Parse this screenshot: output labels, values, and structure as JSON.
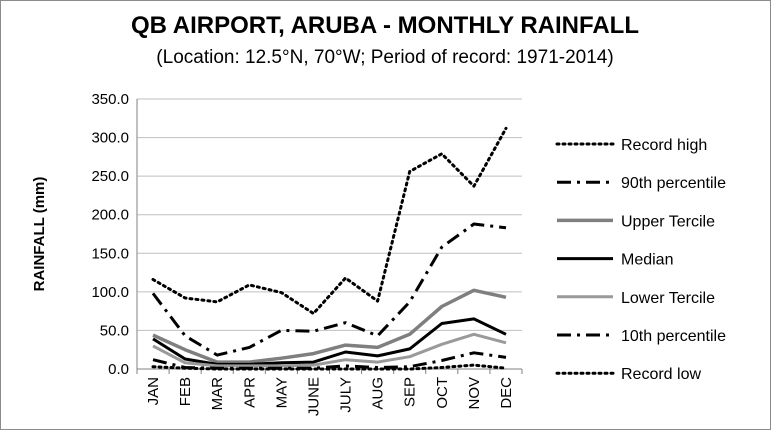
{
  "chart_data": {
    "type": "line",
    "title": "QB AIRPORT, ARUBA - MONTHLY RAINFALL",
    "subtitle": "(Location: 12.5°N, 70°W; Period of record: 1971-2014)",
    "ylabel": "RAINFALL (mm)",
    "xlabel": "",
    "ylim": [
      0,
      350
    ],
    "ytick_step": 50,
    "categories": [
      "JAN",
      "FEB",
      "MAR",
      "APR",
      "MAY",
      "JUNE",
      "JULY",
      "AUG",
      "SEP",
      "OCT",
      "NOV",
      "DEC"
    ],
    "grid": true,
    "legend_position": "right",
    "series": [
      {
        "name": "Record high",
        "style": "dotted",
        "color": "#000000",
        "values": [
          116,
          92,
          87,
          109,
          99,
          72,
          118,
          88,
          256,
          279,
          237,
          312
        ]
      },
      {
        "name": "90th percentile",
        "style": "dashdot",
        "color": "#000000",
        "values": [
          98,
          43,
          18,
          28,
          50,
          49,
          60,
          43,
          87,
          158,
          188,
          183
        ]
      },
      {
        "name": "Upper Tercile",
        "style": "solid-thick",
        "color": "#7f7f7f",
        "values": [
          44,
          25,
          9,
          9,
          14,
          20,
          31,
          28,
          45,
          81,
          102,
          93
        ]
      },
      {
        "name": "Median",
        "style": "solid",
        "color": "#000000",
        "values": [
          39,
          13,
          6,
          6,
          8,
          9,
          22,
          17,
          26,
          59,
          65,
          45
        ]
      },
      {
        "name": "Lower Tercile",
        "style": "solid",
        "color": "#9a9a9a",
        "values": [
          30,
          8,
          4,
          4,
          4,
          5,
          12,
          9,
          16,
          32,
          45,
          34
        ]
      },
      {
        "name": "10th percentile",
        "style": "dashdot",
        "color": "#000000",
        "values": [
          12,
          2,
          1,
          1,
          1,
          1,
          4,
          2,
          3,
          11,
          21,
          15
        ]
      },
      {
        "name": "Record low",
        "style": "dotted",
        "color": "#000000",
        "values": [
          3,
          1,
          0,
          0,
          0,
          0,
          0,
          0,
          0,
          2,
          5,
          1
        ]
      }
    ]
  }
}
